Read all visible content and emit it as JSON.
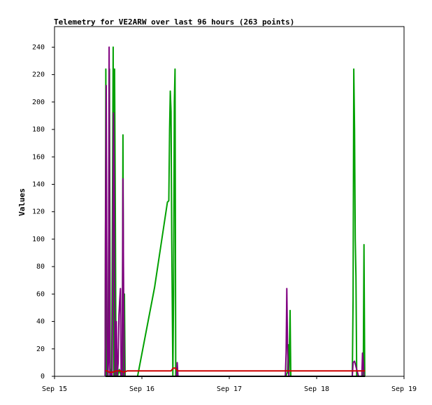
{
  "chart_data": {
    "type": "line",
    "title": "Telemetry for VE2ARW over last 96 hours (263 points)",
    "xlabel": "",
    "ylabel": "Values",
    "xlim": [
      0,
      96
    ],
    "ylim": [
      0,
      255
    ],
    "x_ticks": [
      {
        "x": 0,
        "label": "Sep 15"
      },
      {
        "x": 24,
        "label": "Sep 16"
      },
      {
        "x": 48,
        "label": "Sep 17"
      },
      {
        "x": 72,
        "label": "Sep 18"
      },
      {
        "x": 96,
        "label": "Sep 19"
      }
    ],
    "y_ticks": [
      0,
      20,
      40,
      60,
      80,
      100,
      120,
      140,
      160,
      180,
      200,
      220,
      240
    ],
    "grid": false,
    "series": [
      {
        "color": "#00a000",
        "points": [
          [
            13.9,
            0
          ],
          [
            14.1,
            224
          ],
          [
            14.3,
            0
          ],
          [
            14.5,
            10
          ],
          [
            14.7,
            0
          ],
          [
            14.9,
            119
          ],
          [
            15.1,
            224
          ],
          [
            15.3,
            0
          ],
          [
            15.5,
            5
          ],
          [
            15.7,
            0
          ],
          [
            16.1,
            240
          ],
          [
            16.3,
            0
          ],
          [
            16.5,
            224
          ],
          [
            16.7,
            120
          ],
          [
            16.9,
            0
          ],
          [
            17.1,
            20
          ],
          [
            17.3,
            0
          ],
          [
            17.8,
            5
          ],
          [
            18.3,
            0
          ],
          [
            18.6,
            0
          ],
          [
            18.8,
            176
          ],
          [
            19.0,
            0
          ],
          [
            19.2,
            60
          ],
          [
            19.4,
            0
          ],
          [
            20.4,
            0
          ],
          [
            22.8,
            0
          ],
          [
            27.5,
            65
          ],
          [
            31.0,
            127
          ],
          [
            31.4,
            128
          ],
          [
            31.6,
            180
          ],
          [
            31.8,
            208
          ],
          [
            32.0,
            193
          ],
          [
            32.2,
            100
          ],
          [
            32.5,
            0
          ],
          [
            32.7,
            60
          ],
          [
            32.9,
            200
          ],
          [
            33.1,
            224
          ],
          [
            33.3,
            0
          ],
          [
            33.5,
            2
          ],
          [
            33.7,
            0
          ],
          [
            63.5,
            0
          ],
          [
            64.0,
            3
          ],
          [
            64.2,
            23
          ],
          [
            64.4,
            0
          ],
          [
            64.7,
            48
          ],
          [
            64.9,
            0
          ],
          [
            81.8,
            0
          ],
          [
            82.0,
            56
          ],
          [
            82.2,
            224
          ],
          [
            82.4,
            180
          ],
          [
            82.6,
            100
          ],
          [
            82.8,
            73
          ],
          [
            83.0,
            0
          ],
          [
            83.5,
            0
          ],
          [
            84.6,
            0
          ],
          [
            84.8,
            2
          ],
          [
            85.0,
            96
          ],
          [
            85.2,
            0
          ]
        ]
      },
      {
        "color": "#800080",
        "points": [
          [
            13.9,
            0
          ],
          [
            14.0,
            105
          ],
          [
            14.2,
            212
          ],
          [
            14.4,
            35
          ],
          [
            14.6,
            0
          ],
          [
            14.8,
            10
          ],
          [
            15.0,
            240
          ],
          [
            15.2,
            0
          ],
          [
            15.4,
            0
          ],
          [
            15.6,
            3
          ],
          [
            15.8,
            0
          ],
          [
            16.0,
            80
          ],
          [
            16.2,
            192
          ],
          [
            16.4,
            145
          ],
          [
            16.6,
            0
          ],
          [
            16.8,
            20
          ],
          [
            17.0,
            40
          ],
          [
            17.2,
            0
          ],
          [
            17.5,
            10
          ],
          [
            17.7,
            45
          ],
          [
            17.9,
            55
          ],
          [
            18.1,
            64
          ],
          [
            18.3,
            0
          ],
          [
            18.6,
            0
          ],
          [
            18.8,
            144
          ],
          [
            19.0,
            48
          ],
          [
            19.2,
            0
          ],
          [
            19.5,
            0
          ],
          [
            33.5,
            0
          ],
          [
            33.7,
            10
          ],
          [
            33.9,
            0
          ],
          [
            63.4,
            0
          ],
          [
            63.6,
            17
          ],
          [
            63.8,
            64
          ],
          [
            64.0,
            23
          ],
          [
            64.2,
            5
          ],
          [
            64.4,
            0
          ],
          [
            81.8,
            0
          ],
          [
            82.0,
            10
          ],
          [
            82.4,
            11
          ],
          [
            83.0,
            5
          ],
          [
            83.5,
            0
          ],
          [
            84.4,
            0
          ],
          [
            84.6,
            17
          ],
          [
            84.8,
            10
          ],
          [
            85.0,
            0
          ]
        ]
      },
      {
        "color": "#cc0000",
        "points": [
          [
            14.0,
            4
          ],
          [
            14.5,
            4
          ],
          [
            15.0,
            3
          ],
          [
            16.0,
            3
          ],
          [
            17.0,
            4
          ],
          [
            18.0,
            4
          ],
          [
            19.0,
            3
          ],
          [
            20.0,
            4
          ],
          [
            31.0,
            4
          ],
          [
            32.0,
            4
          ],
          [
            32.6,
            6
          ],
          [
            33.2,
            6
          ],
          [
            33.8,
            4
          ],
          [
            48.0,
            4
          ],
          [
            64.0,
            4
          ],
          [
            72.0,
            4
          ],
          [
            81.5,
            4
          ],
          [
            82.0,
            4
          ],
          [
            82.5,
            4
          ],
          [
            85.3,
            4
          ]
        ]
      },
      {
        "color": "#000000",
        "points": [
          [
            14.0,
            0
          ],
          [
            33.0,
            0
          ],
          [
            64.0,
            0
          ],
          [
            85.3,
            0
          ]
        ]
      }
    ]
  }
}
